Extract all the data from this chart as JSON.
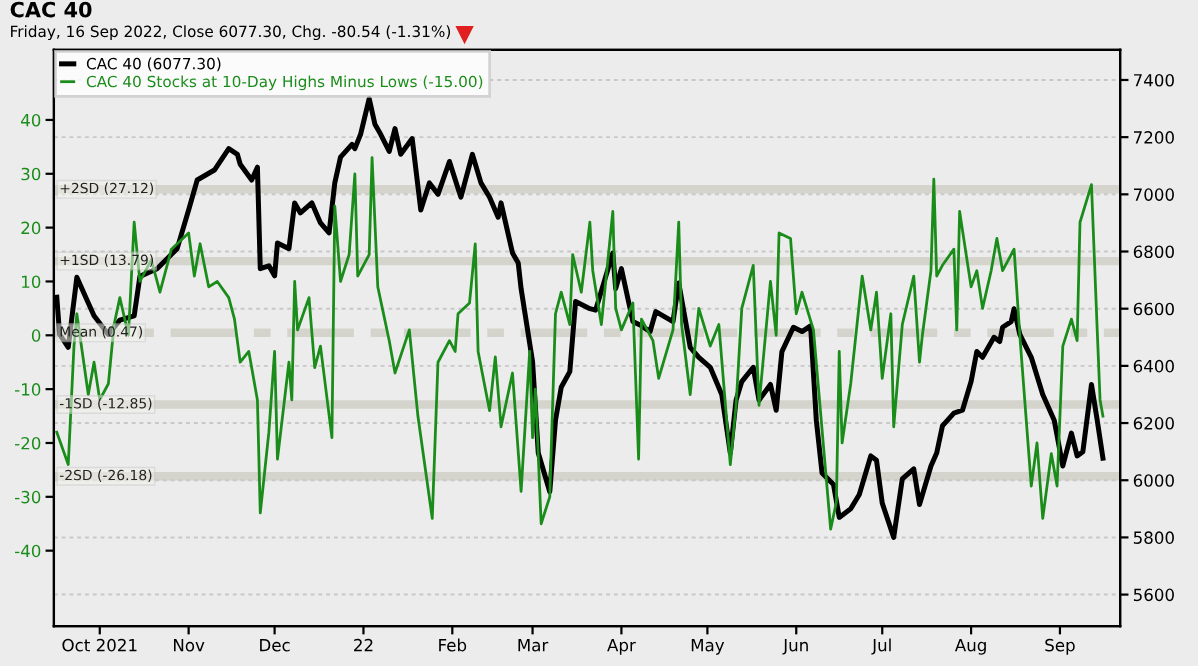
{
  "chart_data": {
    "type": "line",
    "title": "CAC 40",
    "subtitle": "Friday, 16 Sep 2022, Close 6077.30, Chg. -80.54 (-1.31%)",
    "xlim": [
      "2021-09-15",
      "2022-09-22"
    ],
    "xticks": [
      {
        "value": "2021-10-01",
        "label": "Oct 2021"
      },
      {
        "value": "2021-11-01",
        "label": "Nov"
      },
      {
        "value": "2021-12-01",
        "label": "Dec"
      },
      {
        "value": "2022-01-01",
        "label": "22"
      },
      {
        "value": "2022-02-01",
        "label": "Feb"
      },
      {
        "value": "2022-03-01",
        "label": "Mar"
      },
      {
        "value": "2022-04-01",
        "label": "Apr"
      },
      {
        "value": "2022-05-01",
        "label": "May"
      },
      {
        "value": "2022-06-01",
        "label": "Jun"
      },
      {
        "value": "2022-07-01",
        "label": "Jul"
      },
      {
        "value": "2022-08-01",
        "label": "Aug"
      },
      {
        "value": "2022-09-01",
        "label": "Sep"
      }
    ],
    "ylim": [
      -54,
      53
    ],
    "yticks": [
      -40,
      -30,
      -20,
      -10,
      0,
      10,
      20,
      30,
      40
    ],
    "y2lim": [
      5490,
      7505
    ],
    "y2ticks": [
      5600,
      5800,
      6000,
      6200,
      6400,
      6600,
      6800,
      7000,
      7200,
      7400
    ],
    "grid": true,
    "legend": "top left",
    "ref_lines": [
      {
        "axis": "y",
        "value": 27.12,
        "label": "+2SD (27.12)",
        "color": "#d4d4cc",
        "line_style": "solid"
      },
      {
        "axis": "y",
        "value": 13.79,
        "label": "+1SD (13.79)",
        "color": "#d4d4cc",
        "line_style": "solid"
      },
      {
        "axis": "y",
        "value": 0.47,
        "label": "Mean (0.47)",
        "color": "#d4d4cc",
        "line_style": "dashed"
      },
      {
        "axis": "y",
        "value": -12.85,
        "label": "-1SD (-12.85)",
        "color": "#d4d4cc",
        "line_style": "solid"
      },
      {
        "axis": "y",
        "value": -26.18,
        "label": "-2SD (-26.18)",
        "color": "#d4d4cc",
        "line_style": "solid"
      }
    ],
    "series": [
      {
        "name": "CAC 40 (6077.30)",
        "color": "#000000",
        "axis": "y2",
        "x": [
          "2021-09-16",
          "2021-09-17",
          "2021-09-20",
          "2021-09-23",
          "2021-09-27",
          "2021-09-29",
          "2021-10-04",
          "2021-10-08",
          "2021-10-13",
          "2021-10-15",
          "2021-10-21",
          "2021-10-28",
          "2021-11-01",
          "2021-11-04",
          "2021-11-10",
          "2021-11-15",
          "2021-11-18",
          "2021-11-19",
          "2021-11-23",
          "2021-11-25",
          "2021-11-26",
          "2021-11-29",
          "2021-12-01",
          "2021-12-02",
          "2021-12-06",
          "2021-12-08",
          "2021-12-10",
          "2021-12-14",
          "2021-12-17",
          "2021-12-20",
          "2021-12-22",
          "2021-12-24",
          "2021-12-28",
          "2021-12-29",
          "2021-12-31",
          "2022-01-03",
          "2022-01-05",
          "2022-01-07",
          "2022-01-10",
          "2022-01-12",
          "2022-01-14",
          "2022-01-18",
          "2022-01-21",
          "2022-01-24",
          "2022-01-27",
          "2022-01-31",
          "2022-02-03",
          "2022-02-04",
          "2022-02-08",
          "2022-02-11",
          "2022-02-14",
          "2022-02-17",
          "2022-02-18",
          "2022-02-22",
          "2022-02-24",
          "2022-02-25",
          "2022-03-01",
          "2022-03-03",
          "2022-03-07",
          "2022-03-09",
          "2022-03-11",
          "2022-03-14",
          "2022-03-16",
          "2022-03-21",
          "2022-03-23",
          "2022-03-29",
          "2022-03-30",
          "2022-04-01",
          "2022-04-05",
          "2022-04-08",
          "2022-04-11",
          "2022-04-13",
          "2022-04-19",
          "2022-04-21",
          "2022-04-25",
          "2022-04-28",
          "2022-05-02",
          "2022-05-06",
          "2022-05-09",
          "2022-05-11",
          "2022-05-13",
          "2022-05-17",
          "2022-05-19",
          "2022-05-23",
          "2022-05-25",
          "2022-05-27",
          "2022-05-31",
          "2022-06-03",
          "2022-06-06",
          "2022-06-08",
          "2022-06-10",
          "2022-06-14",
          "2022-06-16",
          "2022-06-20",
          "2022-06-23",
          "2022-06-27",
          "2022-06-29",
          "2022-07-01",
          "2022-07-05",
          "2022-07-08",
          "2022-07-12",
          "2022-07-14",
          "2022-07-18",
          "2022-07-20",
          "2022-07-22",
          "2022-07-26",
          "2022-07-29",
          "2022-08-01",
          "2022-08-03",
          "2022-08-05",
          "2022-08-09",
          "2022-08-11",
          "2022-08-12",
          "2022-08-15",
          "2022-08-16",
          "2022-08-18",
          "2022-08-22",
          "2022-08-26",
          "2022-08-30",
          "2022-09-02",
          "2022-09-05",
          "2022-09-07",
          "2022-09-09",
          "2022-09-12",
          "2022-09-14",
          "2022-09-16"
        ],
        "values": [
          6640,
          6510,
          6465,
          6710,
          6620,
          6575,
          6510,
          6560,
          6575,
          6713,
          6740,
          6810,
          6945,
          7050,
          7085,
          7160,
          7140,
          7105,
          7050,
          7095,
          6740,
          6750,
          6715,
          6830,
          6810,
          6970,
          6935,
          6970,
          6900,
          6865,
          7040,
          7130,
          7175,
          7160,
          7210,
          7335,
          7245,
          7210,
          7150,
          7230,
          7140,
          7195,
          6945,
          7040,
          7000,
          7115,
          7020,
          6990,
          7140,
          7040,
          6990,
          6920,
          6970,
          6795,
          6760,
          6670,
          6415,
          6095,
          5960,
          6210,
          6325,
          6380,
          6625,
          6600,
          6595,
          6795,
          6670,
          6740,
          6555,
          6540,
          6520,
          6590,
          6555,
          6690,
          6465,
          6430,
          6395,
          6300,
          6095,
          6280,
          6345,
          6395,
          6280,
          6335,
          6245,
          6450,
          6535,
          6520,
          6540,
          6210,
          6025,
          5985,
          5870,
          5900,
          5950,
          6085,
          6070,
          5920,
          5800,
          6005,
          6040,
          5915,
          6050,
          6095,
          6190,
          6235,
          6245,
          6345,
          6450,
          6430,
          6500,
          6485,
          6535,
          6555,
          6600,
          6510,
          6430,
          6300,
          6210,
          6050,
          6165,
          6085,
          6100,
          6335,
          6210,
          6077.3
        ]
      },
      {
        "name": "CAC 40 Stocks at 10-Day Highs Minus Lows (-15.00)",
        "color": "#1a8c1a",
        "x": [
          "2021-09-16",
          "2021-09-20",
          "2021-09-22",
          "2021-09-23",
          "2021-09-27",
          "2021-09-29",
          "2021-10-01",
          "2021-10-04",
          "2021-10-06",
          "2021-10-08",
          "2021-10-11",
          "2021-10-13",
          "2021-10-15",
          "2021-10-19",
          "2021-10-22",
          "2021-10-26",
          "2021-11-01",
          "2021-11-03",
          "2021-11-05",
          "2021-11-08",
          "2021-11-11",
          "2021-11-15",
          "2021-11-17",
          "2021-11-19",
          "2021-11-22",
          "2021-11-25",
          "2021-11-26",
          "2021-11-29",
          "2021-12-01",
          "2021-12-02",
          "2021-12-06",
          "2021-12-07",
          "2021-12-08",
          "2021-12-09",
          "2021-12-13",
          "2021-12-15",
          "2021-12-17",
          "2021-12-21",
          "2021-12-22",
          "2021-12-24",
          "2021-12-27",
          "2021-12-29",
          "2021-12-30",
          "2022-01-03",
          "2022-01-04",
          "2022-01-06",
          "2022-01-10",
          "2022-01-12",
          "2022-01-17",
          "2022-01-20",
          "2022-01-25",
          "2022-01-27",
          "2022-01-31",
          "2022-02-02",
          "2022-02-03",
          "2022-02-07",
          "2022-02-09",
          "2022-02-10",
          "2022-02-14",
          "2022-02-16",
          "2022-02-18",
          "2022-02-22",
          "2022-02-25",
          "2022-02-28",
          "2022-03-01",
          "2022-03-02",
          "2022-03-04",
          "2022-03-07",
          "2022-03-09",
          "2022-03-11",
          "2022-03-14",
          "2022-03-15",
          "2022-03-18",
          "2022-03-21",
          "2022-03-22",
          "2022-03-25",
          "2022-03-29",
          "2022-03-30",
          "2022-04-01",
          "2022-04-05",
          "2022-04-07",
          "2022-04-08",
          "2022-04-12",
          "2022-04-14",
          "2022-04-19",
          "2022-04-21",
          "2022-04-22",
          "2022-04-25",
          "2022-04-28",
          "2022-05-02",
          "2022-05-05",
          "2022-05-09",
          "2022-05-11",
          "2022-05-13",
          "2022-05-17",
          "2022-05-19",
          "2022-05-23",
          "2022-05-25",
          "2022-05-26",
          "2022-05-30",
          "2022-06-01",
          "2022-06-03",
          "2022-06-07",
          "2022-06-13",
          "2022-06-15",
          "2022-06-16",
          "2022-06-17",
          "2022-06-20",
          "2022-06-24",
          "2022-06-27",
          "2022-06-29",
          "2022-07-01",
          "2022-07-04",
          "2022-07-05",
          "2022-07-08",
          "2022-07-12",
          "2022-07-14",
          "2022-07-15",
          "2022-07-18",
          "2022-07-19",
          "2022-07-20",
          "2022-07-22",
          "2022-07-26",
          "2022-07-27",
          "2022-07-28",
          "2022-08-01",
          "2022-08-03",
          "2022-08-05",
          "2022-08-08",
          "2022-08-10",
          "2022-08-12",
          "2022-08-16",
          "2022-08-18",
          "2022-08-22",
          "2022-08-24",
          "2022-08-26",
          "2022-08-29",
          "2022-08-31",
          "2022-09-02",
          "2022-09-05",
          "2022-09-07",
          "2022-09-08",
          "2022-09-12",
          "2022-09-14",
          "2022-09-15",
          "2022-09-16"
        ],
        "values": [
          -18,
          -24,
          -2,
          4,
          -11,
          -5,
          -12,
          -9,
          2,
          7,
          0,
          21,
          10,
          14,
          8,
          16,
          19,
          11,
          17,
          9,
          10,
          7,
          3,
          -5,
          -3,
          -12,
          -33,
          -18,
          -3,
          -23,
          -5,
          -12,
          10,
          1,
          7,
          -6,
          -2,
          -19,
          24,
          10,
          15,
          30,
          11,
          15,
          33,
          9,
          -1,
          -7,
          1,
          -15,
          -34,
          -5,
          -1,
          -3,
          4,
          6,
          17,
          -3,
          -14,
          -4,
          -17,
          -7,
          -29,
          -3,
          -19,
          -10,
          -35,
          -30,
          4,
          8,
          2,
          15,
          8,
          21,
          12,
          2,
          23,
          5,
          1,
          6,
          -23,
          3,
          -1,
          -8,
          1,
          21,
          2,
          -11,
          5,
          -2,
          2,
          -24,
          -13,
          5,
          13,
          -13,
          10,
          0,
          19,
          18,
          4,
          8,
          1,
          -36,
          -31,
          -3,
          -20,
          -9,
          11,
          1,
          8,
          -8,
          4,
          -17,
          2,
          11,
          -5,
          0,
          12,
          29,
          11,
          13,
          16,
          1,
          23,
          9,
          12,
          5,
          12,
          18,
          12,
          16,
          0,
          -28,
          -20,
          -34,
          -22,
          -28,
          -2,
          3,
          -1,
          21,
          28,
          1,
          -12,
          -15
        ]
      }
    ]
  }
}
